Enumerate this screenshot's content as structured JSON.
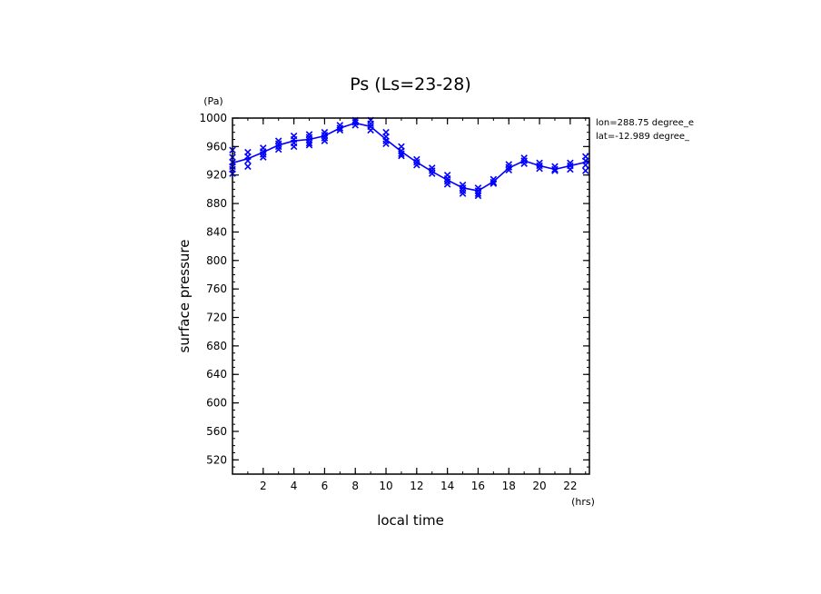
{
  "chart_data": {
    "type": "line",
    "title": "Ps (Ls=23-28)",
    "xlabel": "local time",
    "ylabel": "surface pressure",
    "xunit": "(hrs)",
    "yunit": "(Pa)",
    "annotations": [
      "lon=288.75 degree_e",
      "lat=-12.989 degree_"
    ],
    "xlim": [
      0,
      23.25
    ],
    "ylim": [
      500,
      1000
    ],
    "xticks": [
      2,
      4,
      6,
      8,
      10,
      12,
      14,
      16,
      18,
      20,
      22
    ],
    "yticks": [
      520,
      560,
      600,
      640,
      680,
      720,
      760,
      800,
      840,
      880,
      920,
      960,
      1000
    ],
    "grid": false,
    "line_color": "#0000ff",
    "series": [
      {
        "type": "line",
        "x": [
          0,
          1,
          2,
          3,
          4,
          5,
          6,
          7,
          8,
          9,
          10,
          11,
          12,
          13,
          14,
          15,
          16,
          17,
          18,
          19,
          20,
          21,
          22,
          23,
          23.25
        ],
        "values": [
          937,
          943,
          952,
          962,
          968,
          970,
          975,
          986,
          993,
          988,
          970,
          953,
          938,
          925,
          913,
          902,
          898,
          911,
          930,
          940,
          933,
          928,
          933,
          938,
          939
        ]
      },
      {
        "type": "scatter",
        "marker": "x",
        "x": [
          0,
          0,
          0,
          0,
          0,
          0,
          1,
          1,
          1,
          1,
          2,
          2,
          2,
          2,
          3,
          3,
          3,
          3,
          4,
          4,
          4,
          4,
          5,
          5,
          5,
          5,
          5,
          6,
          6,
          6,
          6,
          7,
          7,
          7,
          8,
          8,
          8,
          9,
          9,
          9,
          9,
          10,
          10,
          10,
          10,
          11,
          11,
          11,
          11,
          12,
          12,
          12,
          13,
          13,
          13,
          14,
          14,
          14,
          14,
          15,
          15,
          15,
          15,
          16,
          16,
          16,
          16,
          17,
          17,
          17,
          18,
          18,
          18,
          19,
          19,
          19,
          20,
          20,
          20,
          21,
          21,
          21,
          22,
          22,
          22,
          23,
          23,
          23,
          23
        ],
        "values": [
          955,
          945,
          938,
          932,
          928,
          922,
          952,
          946,
          940,
          932,
          958,
          953,
          949,
          945,
          968,
          964,
          960,
          956,
          975,
          970,
          965,
          960,
          977,
          973,
          969,
          965,
          962,
          980,
          976,
          972,
          968,
          990,
          986,
          983,
          997,
          994,
          990,
          997,
          992,
          988,
          983,
          980,
          974,
          968,
          964,
          960,
          954,
          950,
          947,
          942,
          938,
          934,
          930,
          926,
          922,
          920,
          915,
          911,
          907,
          906,
          902,
          898,
          894,
          902,
          898,
          894,
          891,
          914,
          910,
          908,
          935,
          931,
          927,
          944,
          940,
          936,
          937,
          933,
          929,
          932,
          928,
          926,
          937,
          933,
          928,
          946,
          940,
          934,
          926
        ]
      }
    ]
  }
}
